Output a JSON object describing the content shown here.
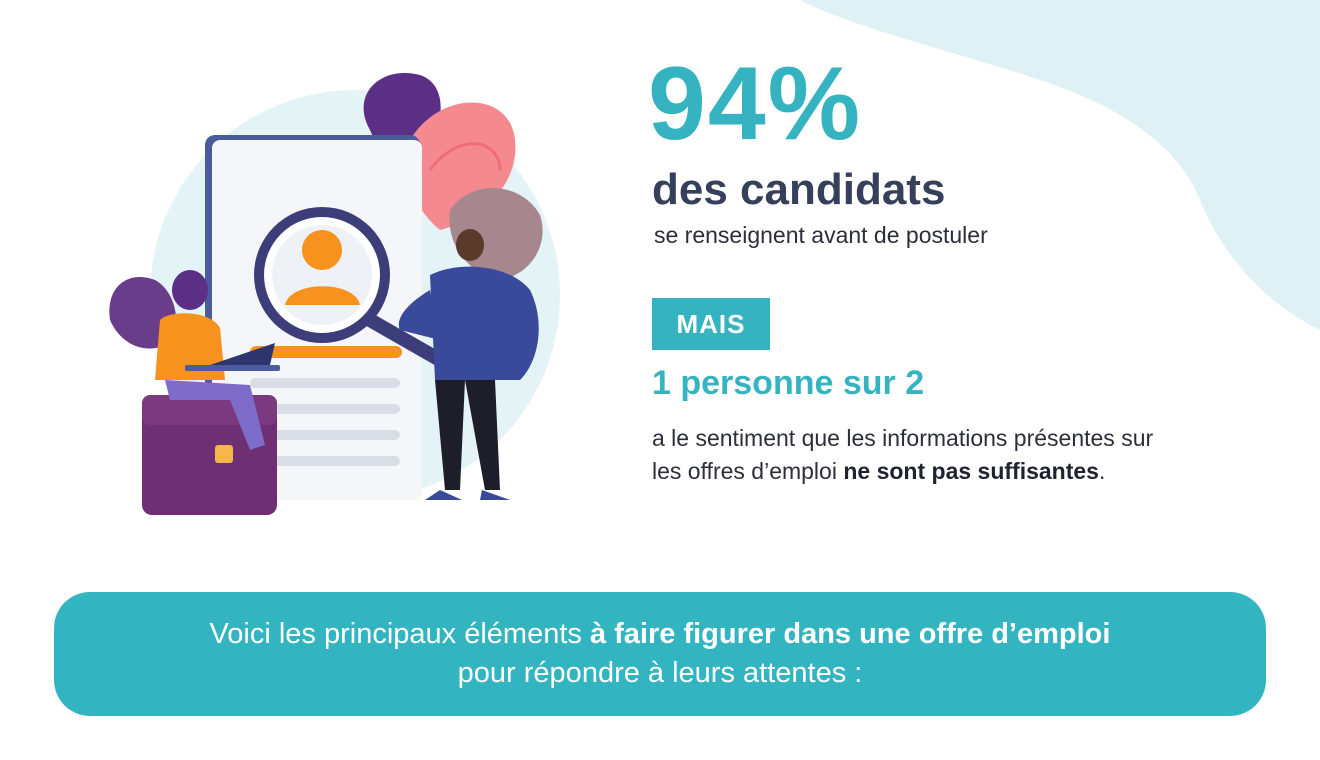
{
  "stat_primary": {
    "percent": "94%",
    "heading": "des candidats",
    "subtitle": "se renseignent avant de postuler"
  },
  "badge": {
    "label": "MAIS"
  },
  "stat_secondary": {
    "headline": "1 personne sur 2",
    "desc_part1": "a le sentiment que les informations présentes sur les offres d’emploi ",
    "desc_bold": "ne sont pas suffisantes",
    "desc_end": "."
  },
  "banner": {
    "line1_normal": "Voici les principaux éléments ",
    "line1_bold": "à faire figurer dans une offre d’emploi",
    "line2": "pour répondre à leurs attentes :"
  },
  "colors": {
    "accent": "#35b3c0",
    "heading": "#36405a",
    "background_blob": "#dff1f4",
    "banner": "#33b4c1"
  },
  "icons": [
    "candidate-profile-illustration",
    "magnifier-icon",
    "briefcase-icon",
    "laptop-icon",
    "user-avatar-icon"
  ]
}
